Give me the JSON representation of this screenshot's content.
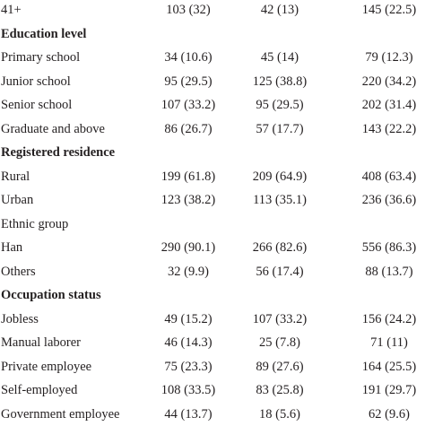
{
  "rows": [
    {
      "type": "data",
      "label": "41+",
      "c1": "103 (32)",
      "c2": "42 (13)",
      "c3": "145 (22.5)"
    },
    {
      "type": "section",
      "label": "Education level"
    },
    {
      "type": "data",
      "label": "Primary school",
      "c1": "34 (10.6)",
      "c2": "45 (14)",
      "c3": "79 (12.3)"
    },
    {
      "type": "data",
      "label": "Junior school",
      "c1": "95 (29.5)",
      "c2": "125 (38.8)",
      "c3": "220 (34.2)"
    },
    {
      "type": "data",
      "label": "Senior school",
      "c1": "107 (33.2)",
      "c2": "95 (29.5)",
      "c3": "202 (31.4)"
    },
    {
      "type": "data",
      "label": "Graduate and above",
      "c1": "86 (26.7)",
      "c2": "57 (17.7)",
      "c3": "143 (22.2)"
    },
    {
      "type": "section",
      "label": "Registered residence"
    },
    {
      "type": "data",
      "label": "Rural",
      "c1": "199 (61.8)",
      "c2": "209 (64.9)",
      "c3": "408 (63.4)"
    },
    {
      "type": "data",
      "label": "Urban",
      "c1": "123 (38.2)",
      "c2": "113 (35.1)",
      "c3": "236 (36.6)"
    },
    {
      "type": "plain",
      "label": "Ethnic group"
    },
    {
      "type": "data",
      "label": "Han",
      "c1": "290 (90.1)",
      "c2": "266 (82.6)",
      "c3": "556 (86.3)"
    },
    {
      "type": "data",
      "label": "Others",
      "c1": "32 (9.9)",
      "c2": "56 (17.4)",
      "c3": "88 (13.7)"
    },
    {
      "type": "section",
      "label": "Occupation status"
    },
    {
      "type": "data",
      "label": "Jobless",
      "c1": "49 (15.2)",
      "c2": "107 (33.2)",
      "c3": "156 (24.2)"
    },
    {
      "type": "data",
      "label": "Manual laborer",
      "c1": "46 (14.3)",
      "c2": "25 (7.8)",
      "c3": "71 (11)"
    },
    {
      "type": "data",
      "label": "Private employee",
      "c1": "75 (23.3)",
      "c2": "89 (27.6)",
      "c3": "164 (25.5)"
    },
    {
      "type": "data",
      "label": "Self-employed",
      "c1": "108 (33.5)",
      "c2": "83 (25.8)",
      "c3": "191 (29.7)"
    },
    {
      "type": "data",
      "label": "Government employee",
      "c1": "44 (13.7)",
      "c2": "18 (5.6)",
      "c3": "62 (9.6)"
    }
  ]
}
